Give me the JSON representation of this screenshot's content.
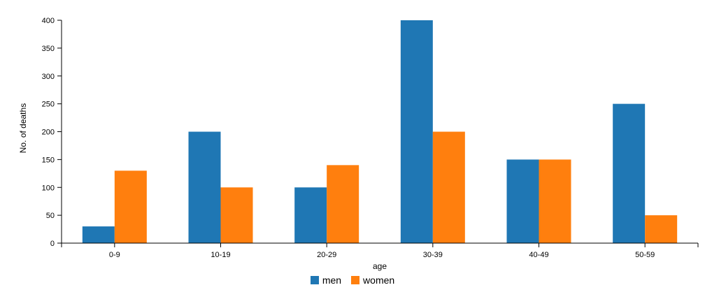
{
  "chart_data": {
    "type": "bar",
    "categories": [
      "0-9",
      "10-19",
      "20-29",
      "30-39",
      "40-49",
      "50-59"
    ],
    "series": [
      {
        "name": "men",
        "values": [
          30,
          200,
          100,
          400,
          150,
          250
        ],
        "color": "#1f77b4"
      },
      {
        "name": "women",
        "values": [
          130,
          100,
          140,
          200,
          150,
          50
        ],
        "color": "#ff7f0e"
      }
    ],
    "title": "",
    "xlabel": "age",
    "ylabel": "No. of deaths",
    "ylim": [
      0,
      400
    ],
    "yticks": [
      0,
      50,
      100,
      150,
      200,
      250,
      300,
      350,
      400
    ],
    "grid": false,
    "legend": "bottom-center"
  }
}
